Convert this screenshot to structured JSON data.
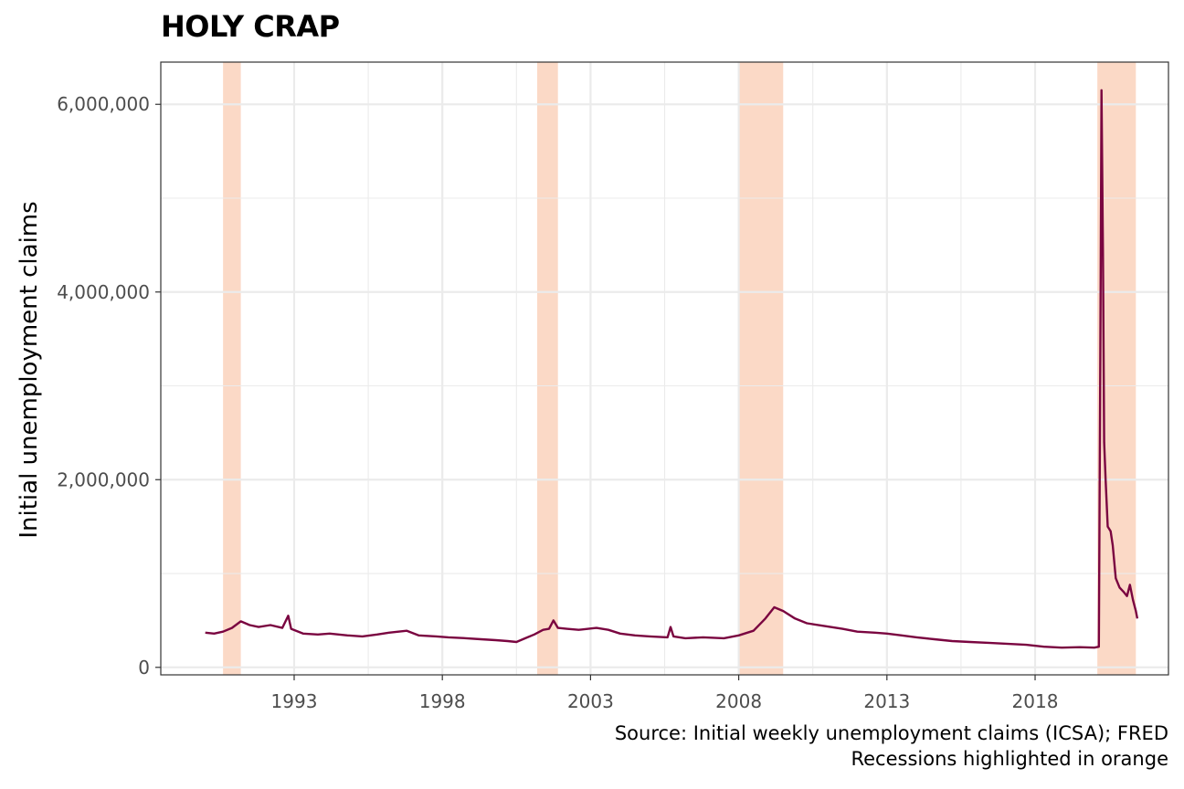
{
  "chart_data": {
    "type": "line",
    "title": "HOLY CRAP",
    "xlabel": "",
    "ylabel": "Initial unemployment claims",
    "xlim": [
      1988.5,
      2022.5
    ],
    "ylim": [
      -80000,
      6450000
    ],
    "x_ticks": [
      1993,
      1998,
      2003,
      2008,
      2013,
      2018
    ],
    "y_ticks": [
      0,
      2000000,
      4000000,
      6000000
    ],
    "y_tick_labels": [
      "0",
      "2,000,000",
      "4,000,000",
      "6,000,000"
    ],
    "grid": true,
    "caption": [
      "Source: Initial weekly unemployment claims (ICSA); FRED",
      "Recessions highlighted in orange"
    ],
    "recessions": [
      {
        "start": 1990.6,
        "end": 1991.2
      },
      {
        "start": 2001.2,
        "end": 2001.9
      },
      {
        "start": 2008.0,
        "end": 2009.5
      },
      {
        "start": 2020.1,
        "end": 2021.4
      }
    ],
    "colors": {
      "line": "#7a0540",
      "recession": "#fbd9c6",
      "grid": "#ebebeb",
      "border": "#333333"
    },
    "series": [
      {
        "points": [
          [
            1990.0,
            370000
          ],
          [
            1990.3,
            360000
          ],
          [
            1990.6,
            380000
          ],
          [
            1990.9,
            420000
          ],
          [
            1991.2,
            490000
          ],
          [
            1991.5,
            450000
          ],
          [
            1991.8,
            430000
          ],
          [
            1992.2,
            450000
          ],
          [
            1992.6,
            420000
          ],
          [
            1992.8,
            550000
          ],
          [
            1992.9,
            410000
          ],
          [
            1993.3,
            360000
          ],
          [
            1993.8,
            350000
          ],
          [
            1994.2,
            360000
          ],
          [
            1994.8,
            340000
          ],
          [
            1995.3,
            330000
          ],
          [
            1995.8,
            350000
          ],
          [
            1996.2,
            370000
          ],
          [
            1996.8,
            390000
          ],
          [
            1997.2,
            340000
          ],
          [
            1997.8,
            330000
          ],
          [
            1998.2,
            320000
          ],
          [
            1998.8,
            310000
          ],
          [
            1999.3,
            300000
          ],
          [
            1999.8,
            290000
          ],
          [
            2000.2,
            280000
          ],
          [
            2000.5,
            270000
          ],
          [
            2000.8,
            310000
          ],
          [
            2001.1,
            350000
          ],
          [
            2001.4,
            400000
          ],
          [
            2001.6,
            410000
          ],
          [
            2001.75,
            500000
          ],
          [
            2001.9,
            420000
          ],
          [
            2002.2,
            410000
          ],
          [
            2002.6,
            400000
          ],
          [
            2003.2,
            420000
          ],
          [
            2003.6,
            400000
          ],
          [
            2004.0,
            360000
          ],
          [
            2004.5,
            340000
          ],
          [
            2005.0,
            330000
          ],
          [
            2005.6,
            320000
          ],
          [
            2005.7,
            430000
          ],
          [
            2005.8,
            330000
          ],
          [
            2006.2,
            310000
          ],
          [
            2006.8,
            320000
          ],
          [
            2007.5,
            310000
          ],
          [
            2008.0,
            340000
          ],
          [
            2008.5,
            390000
          ],
          [
            2008.9,
            520000
          ],
          [
            2009.2,
            640000
          ],
          [
            2009.5,
            600000
          ],
          [
            2009.9,
            520000
          ],
          [
            2010.3,
            470000
          ],
          [
            2010.9,
            440000
          ],
          [
            2011.5,
            410000
          ],
          [
            2012.0,
            380000
          ],
          [
            2012.6,
            370000
          ],
          [
            2013.0,
            360000
          ],
          [
            2013.5,
            340000
          ],
          [
            2014.0,
            320000
          ],
          [
            2014.6,
            300000
          ],
          [
            2015.2,
            280000
          ],
          [
            2015.8,
            270000
          ],
          [
            2016.5,
            260000
          ],
          [
            2017.1,
            250000
          ],
          [
            2017.7,
            240000
          ],
          [
            2018.3,
            220000
          ],
          [
            2018.9,
            210000
          ],
          [
            2019.5,
            215000
          ],
          [
            2020.0,
            210000
          ],
          [
            2020.15,
            220000
          ],
          [
            2020.2,
            3300000
          ],
          [
            2020.24,
            6150000
          ],
          [
            2020.29,
            4400000
          ],
          [
            2020.33,
            2400000
          ],
          [
            2020.38,
            2000000
          ],
          [
            2020.45,
            1500000
          ],
          [
            2020.55,
            1450000
          ],
          [
            2020.62,
            1300000
          ],
          [
            2020.72,
            950000
          ],
          [
            2020.85,
            850000
          ],
          [
            2021.0,
            800000
          ],
          [
            2021.1,
            760000
          ],
          [
            2021.2,
            880000
          ],
          [
            2021.3,
            720000
          ],
          [
            2021.4,
            600000
          ],
          [
            2021.45,
            520000
          ]
        ]
      }
    ]
  }
}
